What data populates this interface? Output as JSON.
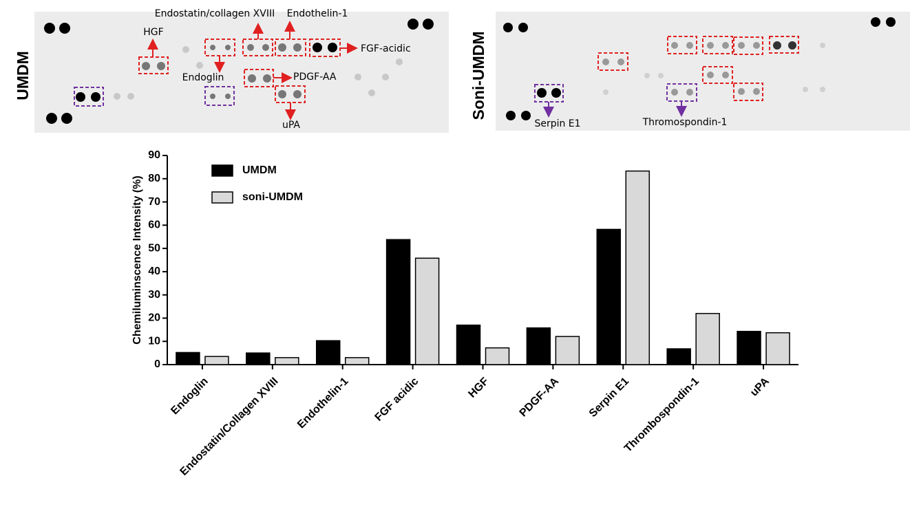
{
  "blots": {
    "left": {
      "title": "UMDM",
      "labels": [
        "Endostatin/collagen XVIII",
        "Endothelin-1",
        "HGF",
        "FGF-acidic",
        "Endoglin",
        "PDGF-AA",
        "uPA"
      ]
    },
    "right": {
      "title": "Soni-UMDM",
      "labels": [
        "Serpin E1",
        "Thromospondin-1"
      ]
    }
  },
  "chart_data": {
    "type": "bar",
    "y_label": "Chemiluminscence Intensity (%)",
    "categories": [
      "Endoglin",
      "Endostatin/Collagen XVIII",
      "Endothelin-1",
      "FGF acidic",
      "HGF",
      "PDGF-AA",
      "Serpin E1",
      "Thrombospondin-1",
      "uPA"
    ],
    "series": [
      {
        "name": "UMDM",
        "color": "#000000",
        "values": [
          5.2,
          5.0,
          10.3,
          53.8,
          17.0,
          15.8,
          58.2,
          6.8,
          14.3
        ]
      },
      {
        "name": "soni-UMDM",
        "color": "#d9d9d9",
        "values": [
          3.5,
          3.0,
          3.0,
          45.8,
          7.2,
          12.1,
          83.3,
          22.0,
          13.7
        ]
      }
    ],
    "ylim": [
      0,
      90
    ],
    "yticks": [
      0,
      10,
      20,
      30,
      40,
      50,
      60,
      70,
      80,
      90
    ],
    "legend": "top-left"
  }
}
